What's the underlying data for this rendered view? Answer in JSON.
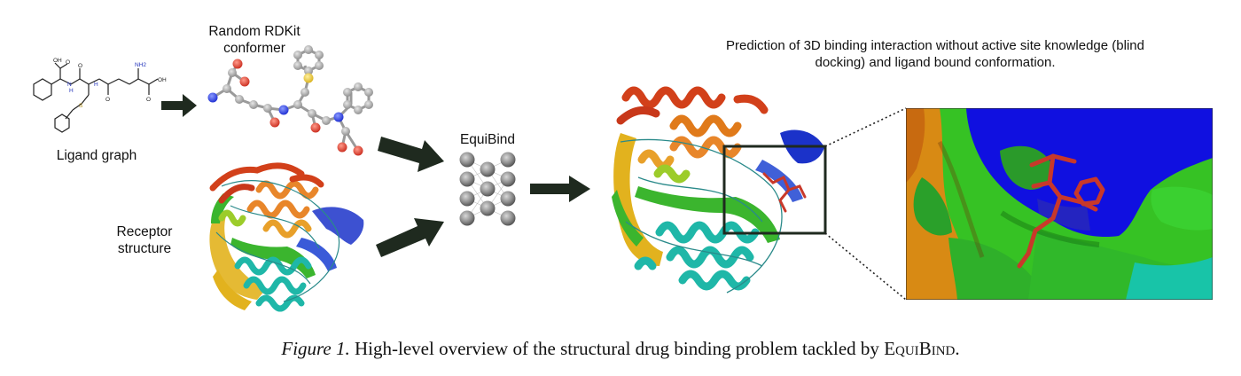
{
  "labels": {
    "rdkit_conformer": "Random RDKit conformer",
    "ligand_graph": "Ligand graph",
    "receptor_structure": "Receptor structure",
    "equibind": "EquiBind",
    "prediction": "Prediction of 3D binding interaction without active site knowledge (blind docking) and ligand bound conformation."
  },
  "molecule_atoms": {
    "ligand_graph": [
      "OH",
      "O",
      "N",
      "H",
      "O",
      "NH2",
      "H",
      "O",
      "OH",
      "O",
      "S"
    ]
  },
  "caption": {
    "figure_number": "Figure 1.",
    "text": "High-level overview of the structural drug binding problem tackled by",
    "method_name_first_cap": "E",
    "method_name_rest_1": "QUI",
    "method_name_cap_2": "B",
    "method_name_rest_2": "IND",
    "period": "."
  },
  "colors": {
    "arrow": "#1f2a1f",
    "helix_red": "#d2401a",
    "helix_orange": "#e8862a",
    "helix_yellow": "#e2b21e",
    "green": "#3bb52e",
    "cyan": "#1fb7a8",
    "blue": "#1b32c9",
    "surface_green": "#36c224",
    "surface_blue": "#1010e0",
    "surface_orange": "#d88a14",
    "surface_teal": "#18c4a8",
    "ligand_red": "#c8382a",
    "node_grey": "#8a8a8a"
  }
}
